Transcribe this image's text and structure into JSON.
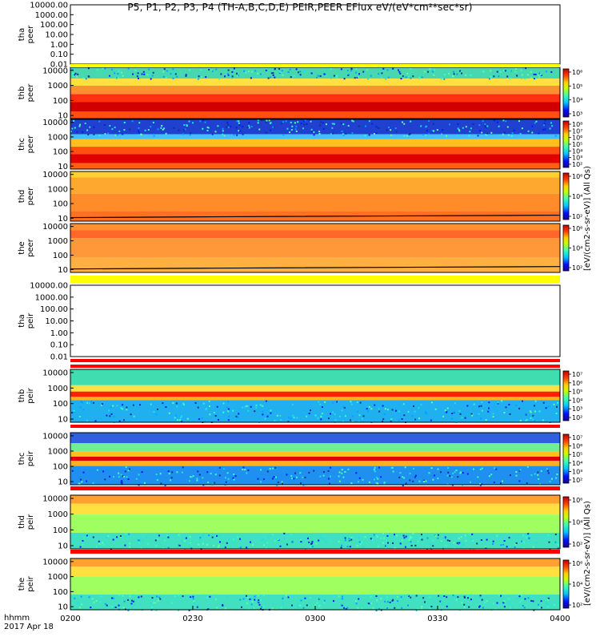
{
  "title": "P5, P1, P2, P3, P4 (TH-A,B,C,D,E) PEIR,PEER EFlux eV/(eV*cm²*sec*sr)",
  "footer": {
    "line1": "hhmm",
    "line2": "2017 Apr 18"
  },
  "side_labels": [
    "[eV/(cm2-s-sr-eV)] (All Qs)",
    "[eV/(cm2-s-sr-eV)] (All Qs)"
  ],
  "colors": {
    "frame": "#000000",
    "background": "#ffffff",
    "stripe_red": "#ff0000",
    "stripe_yellow": "#ffff00"
  },
  "chart_data": {
    "type": "heatmap",
    "x_ticks": [
      "0200",
      "0230",
      "0300",
      "0330",
      "0400"
    ],
    "panels": [
      {
        "label_top": "tha",
        "label_bottom": "peer",
        "empty": true,
        "y_ticks": [
          "10000.00",
          "1000.00",
          "100.00",
          "10.00",
          "1.00",
          "0.10",
          "0.01"
        ]
      },
      {
        "label_top": "thb",
        "label_bottom": "peer",
        "empty": false,
        "y_ticks": [
          "10000",
          "1000",
          "100",
          "10"
        ],
        "cbar_ticks": [
          "10⁶",
          "10⁵",
          "10⁴",
          "10³"
        ]
      },
      {
        "label_top": "thc",
        "label_bottom": "peer",
        "empty": false,
        "y_ticks": [
          "10000",
          "1000",
          "100",
          "10"
        ],
        "cbar_ticks": [
          "10⁸",
          "10⁷",
          "10⁶",
          "10⁵",
          "10⁴",
          "10³",
          "10²"
        ]
      },
      {
        "label_top": "thd",
        "label_bottom": "peer",
        "empty": false,
        "y_ticks": [
          "10000",
          "1000",
          "100",
          "10"
        ],
        "cbar_ticks": [
          "10⁶",
          "10⁴",
          "10²"
        ]
      },
      {
        "label_top": "the",
        "label_bottom": "peer",
        "empty": false,
        "y_ticks": [
          "10000",
          "1000",
          "100",
          "10"
        ],
        "cbar_ticks": [
          "10⁶",
          "10⁴",
          "10²"
        ]
      },
      {
        "label_top": "tha",
        "label_bottom": "peir",
        "empty": true,
        "y_ticks": [
          "10000.00",
          "1000.00",
          "100.00",
          "10.00",
          "1.00",
          "0.10",
          "0.01"
        ]
      },
      {
        "label_top": "thb",
        "label_bottom": "peir",
        "empty": false,
        "y_ticks": [
          "10000",
          "1000",
          "100",
          "10"
        ],
        "cbar_ticks": [
          "10⁷",
          "10⁶",
          "10⁵",
          "10⁴",
          "10³",
          "10²"
        ]
      },
      {
        "label_top": "thc",
        "label_bottom": "peir",
        "empty": false,
        "y_ticks": [
          "10000",
          "1000",
          "100",
          "10"
        ],
        "cbar_ticks": [
          "10⁷",
          "10⁶",
          "10⁵",
          "10⁴",
          "10³",
          "10²"
        ]
      },
      {
        "label_top": "thd",
        "label_bottom": "peir",
        "empty": false,
        "y_ticks": [
          "10000",
          "1000",
          "100",
          "10"
        ],
        "cbar_ticks": [
          "10⁶",
          "10⁴",
          "10²"
        ]
      },
      {
        "label_top": "the",
        "label_bottom": "peir",
        "empty": false,
        "y_ticks": [
          "10000",
          "1000",
          "100",
          "10"
        ],
        "cbar_ticks": [
          "10⁶",
          "10⁴",
          "10²"
        ]
      }
    ]
  }
}
